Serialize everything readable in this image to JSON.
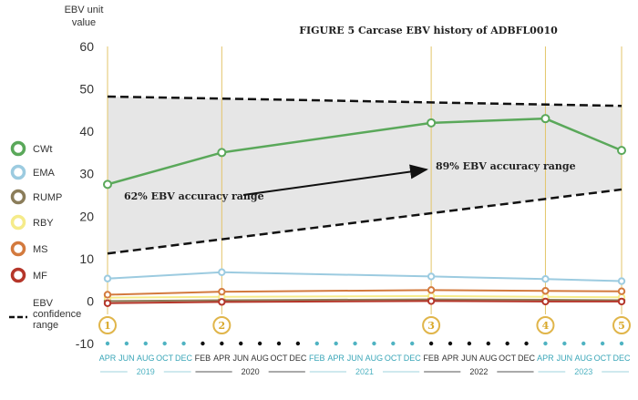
{
  "chart_data": {
    "type": "line",
    "title": "FIGURE 5   Carcase EBV history of ADBFL0010",
    "ylabel": "EBV unit value",
    "ylim": [
      -10,
      60
    ],
    "yticks": [
      -10,
      0,
      10,
      20,
      30,
      40,
      50,
      60
    ],
    "grid": false,
    "legend_position": "left",
    "months": [
      {
        "label": "APR",
        "year": "2019"
      },
      {
        "label": "JUN",
        "year": "2019"
      },
      {
        "label": "AUG",
        "year": "2019"
      },
      {
        "label": "OCT",
        "year": "2019"
      },
      {
        "label": "DEC",
        "year": "2019"
      },
      {
        "label": "FEB",
        "year": "2020"
      },
      {
        "label": "APR",
        "year": "2020"
      },
      {
        "label": "JUN",
        "year": "2020"
      },
      {
        "label": "AUG",
        "year": "2020"
      },
      {
        "label": "OCT",
        "year": "2020"
      },
      {
        "label": "DEC",
        "year": "2020"
      },
      {
        "label": "FEB",
        "year": "2021"
      },
      {
        "label": "APR",
        "year": "2021"
      },
      {
        "label": "JUN",
        "year": "2021"
      },
      {
        "label": "AUG",
        "year": "2021"
      },
      {
        "label": "OCT",
        "year": "2021"
      },
      {
        "label": "DEC",
        "year": "2021"
      },
      {
        "label": "FEB",
        "year": "2022"
      },
      {
        "label": "APR",
        "year": "2022"
      },
      {
        "label": "JUN",
        "year": "2022"
      },
      {
        "label": "AUG",
        "year": "2022"
      },
      {
        "label": "OCT",
        "year": "2022"
      },
      {
        "label": "DEC",
        "year": "2022"
      },
      {
        "label": "APR",
        "year": "2023"
      },
      {
        "label": "JUN",
        "year": "2023"
      },
      {
        "label": "AUG",
        "year": "2023"
      },
      {
        "label": "OCT",
        "year": "2023"
      },
      {
        "label": "DEC",
        "year": "2023"
      }
    ],
    "years": [
      {
        "label": "2019",
        "color": "#5bb8c4"
      },
      {
        "label": "2020",
        "color": "#333333"
      },
      {
        "label": "2021",
        "color": "#5bb8c4"
      },
      {
        "label": "2022",
        "color": "#333333"
      },
      {
        "label": "2023",
        "color": "#5bb8c4"
      }
    ],
    "release_markers": [
      {
        "label": "1",
        "month_index": 0
      },
      {
        "label": "2",
        "month_index": 6
      },
      {
        "label": "3",
        "month_index": 17
      },
      {
        "label": "4",
        "month_index": 23
      },
      {
        "label": "5",
        "month_index": 27
      }
    ],
    "series": [
      {
        "name": "CWt",
        "color": "#5aa85a",
        "values": [
          27.5,
          35,
          42,
          43,
          35.5
        ]
      },
      {
        "name": "EMA",
        "color": "#9ccbe0",
        "values": [
          5.3,
          6.8,
          5.8,
          5.2,
          4.7
        ]
      },
      {
        "name": "RUMP",
        "color": "#8b7d5a",
        "values": [
          0.0,
          0.2,
          0.4,
          0.3,
          0.2
        ]
      },
      {
        "name": "RBY",
        "color": "#f5eb8a",
        "values": [
          0.8,
          1.0,
          1.2,
          1.0,
          0.9
        ]
      },
      {
        "name": "MS",
        "color": "#d37a3e",
        "values": [
          1.5,
          2.2,
          2.6,
          2.4,
          2.3
        ]
      },
      {
        "name": "MF",
        "color": "#b5362a",
        "values": [
          -0.5,
          -0.2,
          0.0,
          -0.1,
          -0.1
        ]
      }
    ],
    "confidence_range": {
      "name": "EBV confidence range",
      "upper": [
        [
          0,
          48.2
        ],
        [
          27,
          46
        ]
      ],
      "lower": [
        [
          0,
          11.2
        ],
        [
          27,
          26.3
        ]
      ]
    },
    "annotations": [
      {
        "text": "62% EBV accuracy range"
      },
      {
        "text": "89% EBV accuracy range"
      }
    ]
  }
}
